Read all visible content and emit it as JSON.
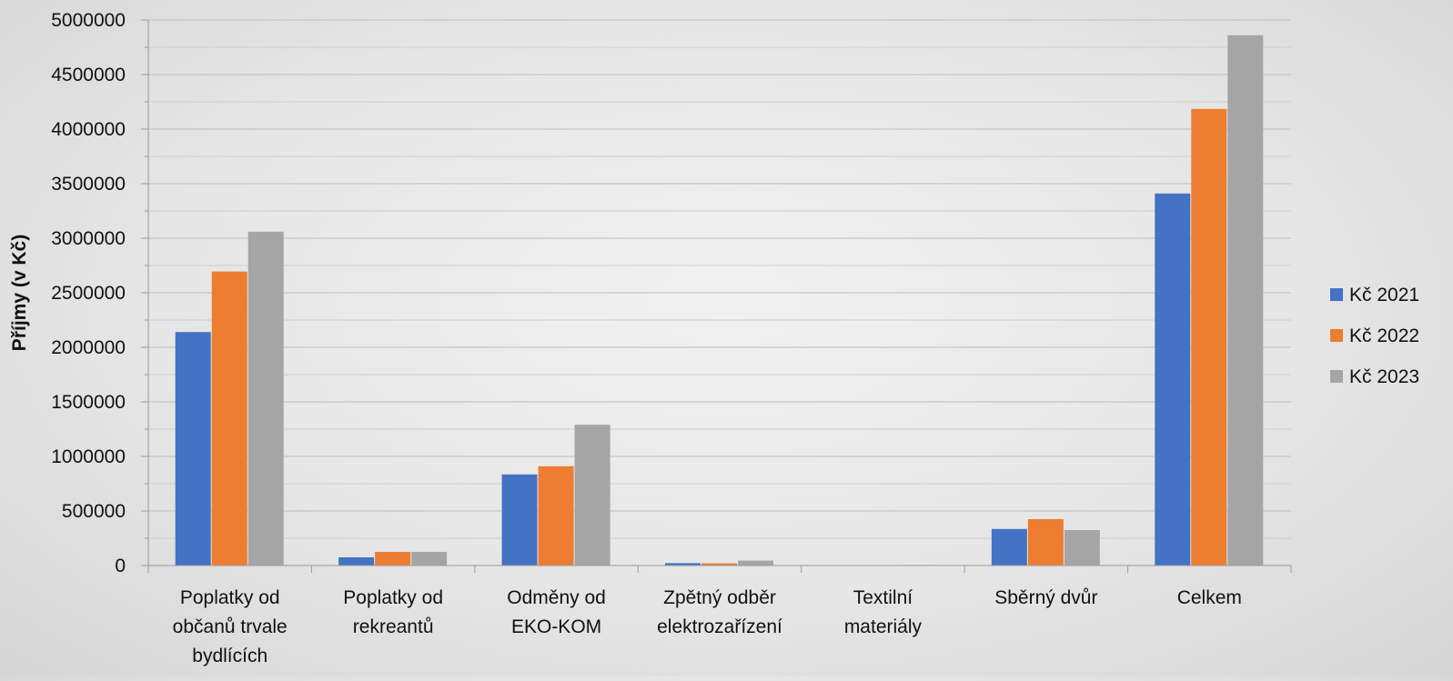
{
  "chart_data": {
    "type": "bar",
    "title": "",
    "xlabel": "",
    "ylabel": "Příjmy (v Kč)",
    "ylim": [
      0,
      5000000
    ],
    "y_ticks": [
      "0",
      "500000",
      "1000000",
      "1500000",
      "2000000",
      "2500000",
      "3000000",
      "3500000",
      "4000000",
      "4500000",
      "5000000"
    ],
    "y_tick_values": [
      0,
      500000,
      1000000,
      1500000,
      2000000,
      2500000,
      3000000,
      3500000,
      4000000,
      4500000,
      5000000
    ],
    "grid": true,
    "legend_position": "right",
    "categories": [
      [
        "Poplatky od",
        "občanů trvale",
        "bydlících"
      ],
      [
        "Poplatky od",
        "rekreantů"
      ],
      [
        "Odměny od",
        "EKO-KOM"
      ],
      [
        "Zpětný odběr",
        "elektrozařízení"
      ],
      [
        "Textilní",
        "materiály"
      ],
      [
        "Sběrný dvůr"
      ],
      [
        "Celkem"
      ]
    ],
    "series": [
      {
        "name": "Kč 2021",
        "color": "#4472C4",
        "values": [
          2140000,
          75000,
          835000,
          22000,
          0,
          335000,
          3410000
        ]
      },
      {
        "name": "Kč 2022",
        "color": "#ED7D31",
        "values": [
          2695000,
          125000,
          910000,
          20000,
          0,
          425000,
          4185000
        ]
      },
      {
        "name": "Kč 2023",
        "color": "#A5A5A5",
        "values": [
          3060000,
          125000,
          1290000,
          45000,
          5000,
          325000,
          4860000
        ]
      }
    ]
  }
}
